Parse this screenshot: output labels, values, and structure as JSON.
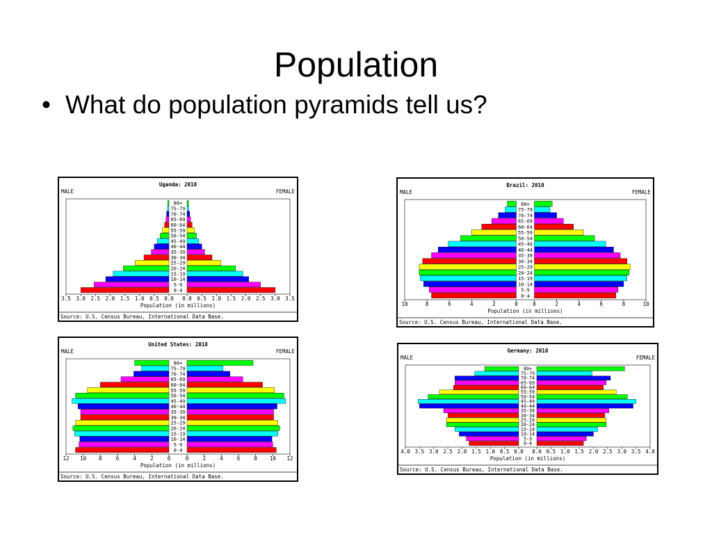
{
  "slide": {
    "title": "Population",
    "bullet": "What do population pyramids tell us?"
  },
  "colors": [
    "#ff0000",
    "#ff00ff",
    "#0000ff",
    "#00ffff",
    "#00ff00",
    "#ffff00",
    "#ff0000",
    "#ff00ff",
    "#0000ff",
    "#00ffff",
    "#00ff00",
    "#ffff00",
    "#ff0000",
    "#ff00ff",
    "#0000ff",
    "#00ffff",
    "#00ff00"
  ],
  "chart_data": [
    {
      "type": "bar",
      "title": "Uganda: 2010",
      "left_label": "MALE",
      "right_label": "FEMALE",
      "xlabel": "Population (in millions)",
      "source": "Source: U.S. Census Bureau, International Data Base.",
      "xlim": [
        0,
        3.5
      ],
      "ticks": [
        0,
        0.5,
        1,
        1.5,
        2,
        2.5,
        3,
        3.5
      ],
      "tick_labels": [
        "0.0",
        "0.5",
        "1.0",
        "1.5",
        "2.0",
        "2.5",
        "3.0",
        "3.5"
      ],
      "categories": [
        "0-4",
        "5-9",
        "10-14",
        "15-19",
        "20-24",
        "25-29",
        "30-34",
        "35-39",
        "40-44",
        "45-49",
        "50-54",
        "55-59",
        "60-64",
        "65-69",
        "70-74",
        "75-79",
        "80+"
      ],
      "series": [
        {
          "name": "MALE",
          "values": [
            3.0,
            2.55,
            2.15,
            1.9,
            1.55,
            1.15,
            0.85,
            0.6,
            0.5,
            0.4,
            0.3,
            0.22,
            0.15,
            0.1,
            0.08,
            0.05,
            0.04
          ]
        },
        {
          "name": "FEMALE",
          "values": [
            3.0,
            2.5,
            2.1,
            1.9,
            1.65,
            1.15,
            0.85,
            0.6,
            0.5,
            0.4,
            0.32,
            0.25,
            0.17,
            0.12,
            0.09,
            0.06,
            0.05
          ]
        }
      ]
    },
    {
      "type": "bar",
      "title": "Brazil: 2010",
      "left_label": "MALE",
      "right_label": "FEMALE",
      "xlabel": "Population (in millions)",
      "source": "Source: U.S. Census Bureau, International Data Base.",
      "xlim": [
        0,
        10
      ],
      "ticks": [
        0,
        2,
        4,
        6,
        8,
        10
      ],
      "tick_labels": [
        "0",
        "2",
        "4",
        "6",
        "8",
        "10"
      ],
      "categories": [
        "0-4",
        "5-9",
        "10-14",
        "15-19",
        "20-24",
        "25-29",
        "30-34",
        "35-39",
        "40-44",
        "45-49",
        "50-54",
        "55-59",
        "60-64",
        "65-69",
        "70-74",
        "75-79",
        "80+"
      ],
      "series": [
        {
          "name": "MALE",
          "values": [
            7.6,
            7.8,
            8.3,
            8.6,
            8.7,
            8.7,
            8.4,
            7.6,
            7.0,
            6.1,
            5.0,
            4.0,
            3.1,
            2.2,
            1.6,
            1.0,
            0.8
          ]
        },
        {
          "name": "FEMALE",
          "values": [
            7.3,
            7.5,
            8.0,
            8.3,
            8.5,
            8.6,
            8.3,
            7.7,
            7.1,
            6.4,
            5.4,
            4.4,
            3.5,
            2.6,
            2.0,
            1.4,
            1.6
          ]
        }
      ]
    },
    {
      "type": "bar",
      "title": "United States: 2010",
      "left_label": "MALE",
      "right_label": "FEMALE",
      "xlabel": "Population (in millions)",
      "source": "Source: U.S. Census Bureau, International Data Base.",
      "xlim": [
        0,
        12
      ],
      "ticks": [
        0,
        2,
        4,
        6,
        8,
        10,
        12
      ],
      "tick_labels": [
        "0",
        "2",
        "4",
        "6",
        "8",
        "10",
        "12"
      ],
      "categories": [
        "0-4",
        "5-9",
        "10-14",
        "15-19",
        "20-24",
        "25-29",
        "30-34",
        "35-39",
        "40-44",
        "45-49",
        "50-54",
        "55-59",
        "60-64",
        "65-69",
        "70-74",
        "75-79",
        "80+"
      ],
      "series": [
        {
          "name": "MALE",
          "values": [
            10.9,
            10.5,
            10.4,
            11.0,
            11.2,
            10.9,
            10.3,
            10.3,
            10.6,
            11.3,
            10.9,
            9.5,
            8.0,
            5.6,
            4.1,
            3.2,
            4.0
          ]
        },
        {
          "name": "FEMALE",
          "values": [
            10.4,
            10.0,
            9.9,
            10.6,
            10.8,
            10.6,
            10.1,
            10.1,
            10.5,
            11.5,
            11.3,
            10.2,
            8.8,
            6.5,
            5.0,
            4.2,
            7.7
          ]
        }
      ]
    },
    {
      "type": "bar",
      "title": "Germany: 2010",
      "left_label": "MALE",
      "right_label": "FEMALE",
      "xlabel": "Population (in millions)",
      "source": "Source: U.S. Census Bureau, International Data Base.",
      "xlim": [
        0,
        4
      ],
      "ticks": [
        0,
        0.5,
        1,
        1.5,
        2,
        2.5,
        3,
        3.5,
        4
      ],
      "tick_labels": [
        "0.0",
        "0.5",
        "1.0",
        "1.5",
        "2.0",
        "2.5",
        "3.0",
        "3.5",
        "4.0"
      ],
      "categories": [
        "0-4",
        "5-9",
        "10-14",
        "15-19",
        "20-24",
        "25-29",
        "30-34",
        "35-39",
        "40-44",
        "45-49",
        "50-54",
        "55-59",
        "60-64",
        "65-69",
        "70-74",
        "75-79",
        "80+"
      ],
      "series": [
        {
          "name": "MALE",
          "values": [
            1.75,
            1.85,
            2.1,
            2.25,
            2.55,
            2.55,
            2.5,
            2.65,
            3.5,
            3.55,
            3.2,
            2.8,
            2.3,
            2.25,
            2.25,
            1.55,
            1.2
          ]
        },
        {
          "name": "FEMALE",
          "values": [
            1.65,
            1.75,
            2.0,
            2.15,
            2.45,
            2.45,
            2.4,
            2.55,
            3.4,
            3.5,
            3.2,
            2.8,
            2.35,
            2.45,
            2.6,
            1.95,
            3.1
          ]
        }
      ]
    }
  ]
}
